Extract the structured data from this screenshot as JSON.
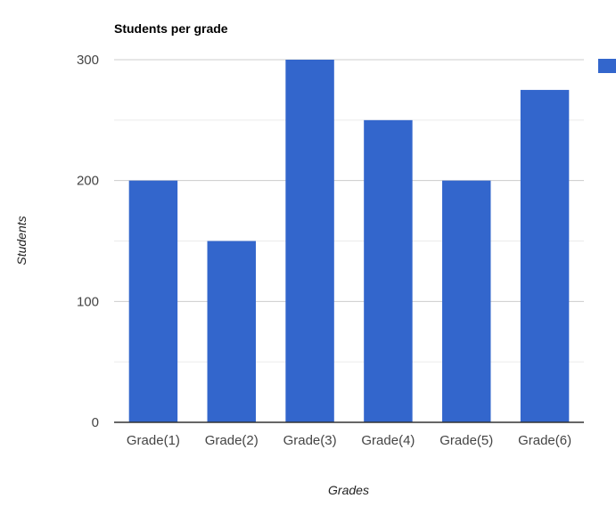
{
  "chart_data": {
    "type": "bar",
    "title": "Students per grade",
    "xlabel": "Grades",
    "ylabel": "Students",
    "categories": [
      "Grade(1)",
      "Grade(2)",
      "Grade(3)",
      "Grade(4)",
      "Grade(5)",
      "Grade(6)"
    ],
    "series": [
      {
        "values": [
          200,
          150,
          300,
          250,
          200,
          275
        ],
        "color": "#3366cc"
      }
    ],
    "ylim": [
      0,
      300
    ],
    "y_ticks": [
      "0",
      "100",
      "200",
      "300"
    ],
    "grid": true,
    "legend": {
      "position": "right",
      "visible": true
    }
  }
}
